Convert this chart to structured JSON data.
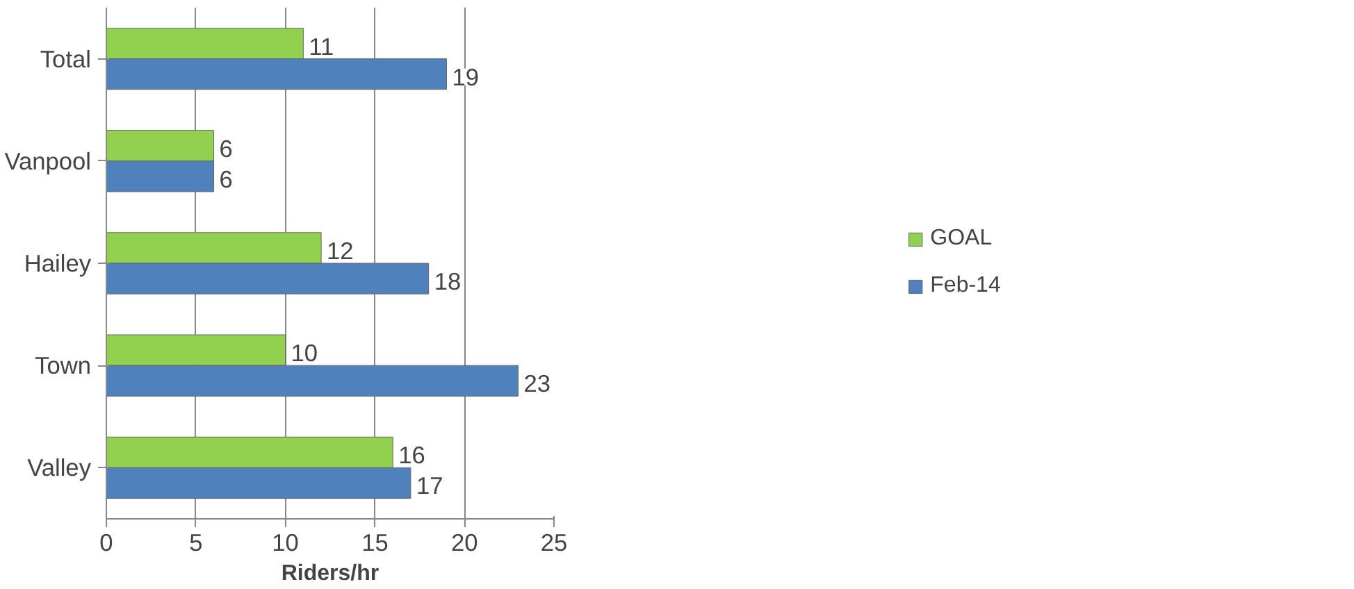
{
  "chart_data": {
    "type": "bar",
    "orientation": "horizontal",
    "xlabel": "Riders/hr",
    "categories": [
      "Total",
      "Vanpool",
      "Hailey",
      "Town",
      "Valley"
    ],
    "series": [
      {
        "name": "GOAL",
        "color": "#92d050",
        "values": [
          11,
          6,
          12,
          10,
          16
        ]
      },
      {
        "name": "Feb-14",
        "color": "#4f81bd",
        "values": [
          19,
          6,
          18,
          23,
          17
        ]
      }
    ],
    "xlim": [
      0,
      25
    ],
    "xticks": [
      0,
      5,
      10,
      15,
      20,
      25
    ],
    "grid": "x",
    "legend": "right",
    "data_labels": true
  }
}
